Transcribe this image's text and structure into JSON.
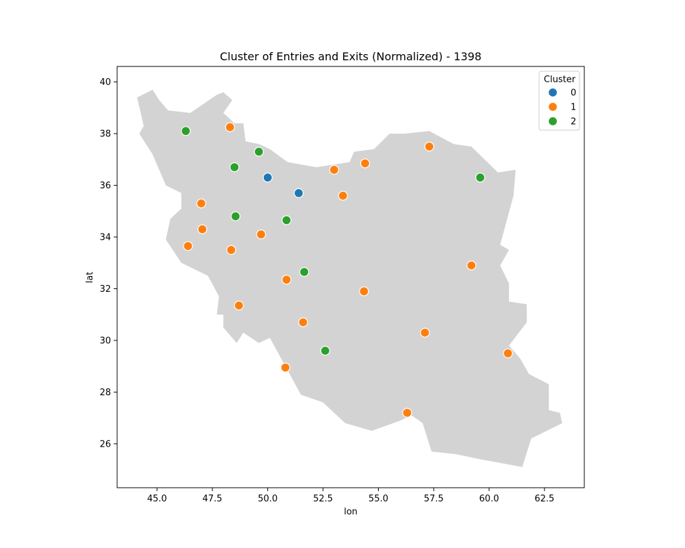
{
  "chart_data": {
    "type": "scatter",
    "title": "Cluster of Entries and Exits (Normalized) - 1398",
    "xlabel": "lon",
    "ylabel": "lat",
    "xlim": [
      43.2,
      64.3
    ],
    "ylim": [
      24.3,
      40.6
    ],
    "xticks": [
      45.0,
      47.5,
      50.0,
      52.5,
      55.0,
      57.5,
      60.0,
      62.5
    ],
    "xtick_labels": [
      "45.0",
      "47.5",
      "50.0",
      "52.5",
      "55.0",
      "57.5",
      "60.0",
      "62.5"
    ],
    "yticks": [
      26,
      28,
      30,
      32,
      34,
      36,
      38,
      40
    ],
    "ytick_labels": [
      "26",
      "28",
      "30",
      "32",
      "34",
      "36",
      "38",
      "40"
    ],
    "grid": false,
    "background_shape": {
      "name": "Iran",
      "color": "#d3d3d3",
      "outline": [
        [
          44.1,
          39.4
        ],
        [
          44.8,
          39.7
        ],
        [
          45.1,
          39.3
        ],
        [
          45.5,
          38.9
        ],
        [
          46.5,
          38.8
        ],
        [
          47.7,
          39.5
        ],
        [
          48.0,
          39.6
        ],
        [
          48.4,
          39.3
        ],
        [
          48.0,
          38.8
        ],
        [
          48.5,
          38.4
        ],
        [
          48.9,
          38.4
        ],
        [
          49.0,
          37.7
        ],
        [
          49.6,
          37.6
        ],
        [
          50.1,
          37.4
        ],
        [
          50.9,
          36.9
        ],
        [
          52.2,
          36.7
        ],
        [
          53.7,
          36.9
        ],
        [
          53.9,
          37.3
        ],
        [
          54.8,
          37.4
        ],
        [
          55.5,
          38.0
        ],
        [
          56.2,
          38.0
        ],
        [
          57.3,
          38.1
        ],
        [
          58.4,
          37.6
        ],
        [
          59.2,
          37.5
        ],
        [
          60.4,
          36.5
        ],
        [
          61.2,
          36.6
        ],
        [
          61.1,
          35.6
        ],
        [
          60.5,
          33.7
        ],
        [
          60.9,
          33.5
        ],
        [
          60.5,
          32.9
        ],
        [
          60.9,
          32.2
        ],
        [
          60.9,
          31.5
        ],
        [
          61.7,
          31.4
        ],
        [
          61.7,
          30.7
        ],
        [
          60.9,
          29.8
        ],
        [
          61.4,
          29.3
        ],
        [
          61.8,
          28.7
        ],
        [
          62.7,
          28.3
        ],
        [
          62.7,
          27.3
        ],
        [
          63.2,
          27.2
        ],
        [
          63.3,
          26.8
        ],
        [
          61.9,
          26.2
        ],
        [
          61.5,
          25.1
        ],
        [
          59.6,
          25.4
        ],
        [
          58.5,
          25.6
        ],
        [
          57.4,
          25.7
        ],
        [
          57.0,
          26.8
        ],
        [
          56.5,
          27.1
        ],
        [
          56.0,
          26.9
        ],
        [
          54.7,
          26.5
        ],
        [
          53.5,
          26.8
        ],
        [
          52.5,
          27.6
        ],
        [
          51.5,
          27.9
        ],
        [
          50.1,
          30.1
        ],
        [
          49.6,
          29.9
        ],
        [
          48.9,
          30.3
        ],
        [
          48.6,
          29.9
        ],
        [
          48.0,
          30.5
        ],
        [
          48.0,
          31.0
        ],
        [
          47.7,
          31.0
        ],
        [
          47.8,
          31.7
        ],
        [
          47.3,
          32.5
        ],
        [
          46.1,
          33.0
        ],
        [
          45.4,
          33.9
        ],
        [
          45.6,
          34.7
        ],
        [
          46.1,
          35.1
        ],
        [
          46.1,
          35.7
        ],
        [
          45.4,
          36.0
        ],
        [
          44.8,
          37.2
        ],
        [
          44.2,
          38.0
        ],
        [
          44.4,
          38.3
        ]
      ]
    },
    "legend": {
      "title": "Cluster",
      "placement": "top-right",
      "entries": [
        {
          "label": "0",
          "color": "#1f77b4"
        },
        {
          "label": "1",
          "color": "#ff7f0e"
        },
        {
          "label": "2",
          "color": "#2ca02c"
        }
      ]
    },
    "series": [
      {
        "name": "0",
        "color": "#1f77b4",
        "points": [
          [
            50.0,
            36.3
          ],
          [
            51.4,
            35.7
          ]
        ]
      },
      {
        "name": "1",
        "color": "#ff7f0e",
        "points": [
          [
            48.3,
            38.25
          ],
          [
            57.3,
            37.5
          ],
          [
            54.4,
            36.85
          ],
          [
            53.0,
            36.6
          ],
          [
            53.4,
            35.6
          ],
          [
            47.0,
            35.3
          ],
          [
            47.05,
            34.3
          ],
          [
            49.7,
            34.1
          ],
          [
            46.4,
            33.65
          ],
          [
            48.35,
            33.5
          ],
          [
            59.2,
            32.9
          ],
          [
            50.85,
            32.35
          ],
          [
            54.35,
            31.9
          ],
          [
            48.7,
            31.35
          ],
          [
            51.6,
            30.7
          ],
          [
            57.1,
            30.3
          ],
          [
            60.85,
            29.5
          ],
          [
            50.8,
            28.95
          ],
          [
            56.3,
            27.2
          ]
        ]
      },
      {
        "name": "2",
        "color": "#2ca02c",
        "points": [
          [
            46.3,
            38.1
          ],
          [
            49.6,
            37.3
          ],
          [
            48.5,
            36.7
          ],
          [
            59.6,
            36.3
          ],
          [
            48.55,
            34.8
          ],
          [
            50.85,
            34.65
          ],
          [
            51.65,
            32.65
          ],
          [
            52.6,
            29.6
          ]
        ]
      }
    ]
  }
}
